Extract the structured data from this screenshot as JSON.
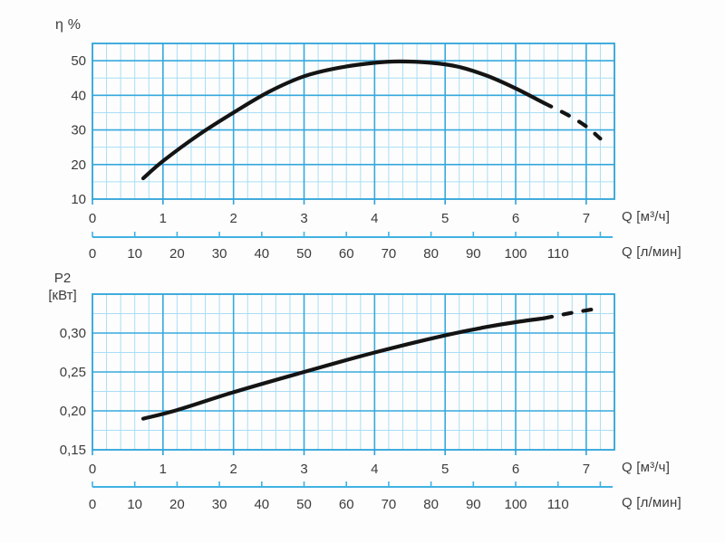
{
  "page": {
    "background": "#ffffff"
  },
  "colors": {
    "grid_major": "#36a9dd",
    "grid_minor": "#a9def4",
    "frame": "#2ea3d8",
    "secondary_axis": "#41b2e2",
    "curve": "#141414",
    "label_text": "#3c3c3c"
  },
  "chart_data": [
    {
      "id": "efficiency",
      "type": "line",
      "y_axis": {
        "title": "η %",
        "range": [
          10,
          55
        ],
        "major_ticks": [
          10,
          20,
          30,
          40,
          50
        ],
        "tick_labels": [
          "10",
          "20",
          "30",
          "40",
          "50"
        ],
        "minor_step": 5,
        "grid": true
      },
      "x_axis_primary": {
        "title": "Q [м³/ч]",
        "range": [
          0,
          7.4
        ],
        "major_ticks": [
          0,
          1,
          2,
          3,
          4,
          5,
          6,
          7
        ],
        "tick_labels": [
          "0",
          "1",
          "2",
          "3",
          "4",
          "5",
          "6",
          "7"
        ],
        "minor_step": 0.2,
        "grid": true
      },
      "x_axis_secondary": {
        "title": "Q [л/мин]",
        "labeled_ticks_lpm": [
          0,
          10,
          20,
          30,
          40,
          50,
          60,
          70,
          80,
          90,
          100,
          110
        ],
        "tick_labels": [
          "0",
          "10",
          "20",
          "30",
          "40",
          "50",
          "60",
          "70",
          "80",
          "90",
          "100",
          "110"
        ],
        "unlabeled_ticks_lpm": [
          120
        ],
        "lpm_per_m3h": 16.6667
      },
      "series": [
        {
          "name": "efficiency-curve",
          "style": "solid",
          "points": [
            [
              0.72,
              16
            ],
            [
              1,
              21
            ],
            [
              1.5,
              28.5
            ],
            [
              2,
              35
            ],
            [
              2.5,
              41
            ],
            [
              3,
              45.5
            ],
            [
              3.5,
              48
            ],
            [
              4,
              49.4
            ],
            [
              4.35,
              49.8
            ],
            [
              4.8,
              49.4
            ],
            [
              5.2,
              48.2
            ],
            [
              5.6,
              45.6
            ],
            [
              6,
              42
            ],
            [
              6.4,
              37.8
            ]
          ]
        },
        {
          "name": "efficiency-curve-extrapolated",
          "style": "dashed",
          "points": [
            [
              6.4,
              37.8
            ],
            [
              6.75,
              34.2
            ],
            [
              7,
              31
            ],
            [
              7.2,
              27.5
            ]
          ]
        }
      ]
    },
    {
      "id": "power",
      "type": "line",
      "y_axis": {
        "title_line1": "P2",
        "title_line2": "[кВт]",
        "range": [
          0.15,
          0.35
        ],
        "major_ticks": [
          0.15,
          0.2,
          0.25,
          0.3
        ],
        "tick_labels": [
          "0,15",
          "0,20",
          "0,25",
          "0,30"
        ],
        "minor_step": 0.025,
        "grid": true
      },
      "x_axis_primary": {
        "title": "Q [м³/ч]",
        "range": [
          0,
          7.4
        ],
        "major_ticks": [
          0,
          1,
          2,
          3,
          4,
          5,
          6,
          7
        ],
        "tick_labels": [
          "0",
          "1",
          "2",
          "3",
          "4",
          "5",
          "6",
          "7"
        ],
        "minor_step": 0.2,
        "grid": true
      },
      "x_axis_secondary": {
        "title": "Q [л/мин]",
        "labeled_ticks_lpm": [
          0,
          10,
          20,
          30,
          40,
          50,
          60,
          70,
          80,
          90,
          100,
          110
        ],
        "tick_labels": [
          "0",
          "10",
          "20",
          "30",
          "40",
          "50",
          "60",
          "70",
          "80",
          "90",
          "100",
          "110"
        ],
        "unlabeled_ticks_lpm": [
          120
        ],
        "lpm_per_m3h": 16.6667
      },
      "series": [
        {
          "name": "power-curve",
          "style": "solid",
          "points": [
            [
              0.72,
              0.19
            ],
            [
              1.2,
              0.201
            ],
            [
              2,
              0.224
            ],
            [
              3,
              0.25
            ],
            [
              4,
              0.275
            ],
            [
              5,
              0.297
            ],
            [
              5.6,
              0.308
            ],
            [
              6,
              0.314
            ],
            [
              6.4,
              0.319
            ]
          ]
        },
        {
          "name": "power-curve-extrapolated",
          "style": "dashed",
          "points": [
            [
              6.4,
              0.319
            ],
            [
              6.8,
              0.326
            ],
            [
              7.2,
              0.332
            ]
          ]
        }
      ]
    }
  ]
}
